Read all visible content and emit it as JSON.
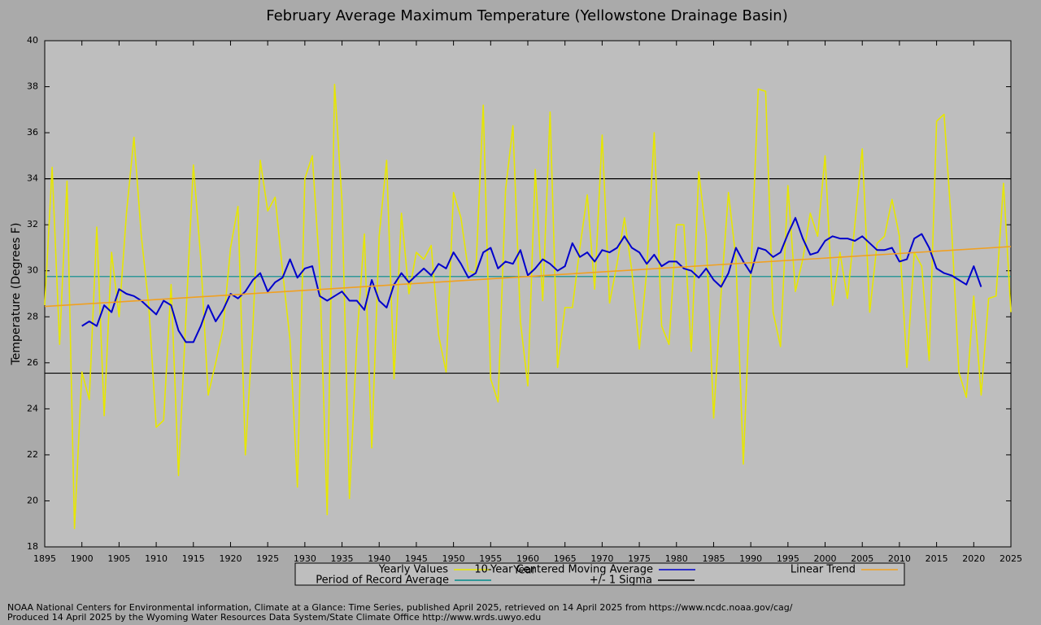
{
  "chart_data": {
    "type": "line",
    "title": "February Average Maximum Temperature (Yellowstone Drainage Basin)",
    "x_label": "Year",
    "y_label": "Temperature (Degrees F)",
    "xlim": [
      1895,
      2025
    ],
    "ylim": [
      18,
      40
    ],
    "xticks": [
      1895,
      1900,
      1905,
      1910,
      1915,
      1920,
      1925,
      1930,
      1935,
      1940,
      1945,
      1950,
      1955,
      1960,
      1965,
      1970,
      1975,
      1980,
      1985,
      1990,
      1995,
      2000,
      2005,
      2010,
      2015,
      2020,
      2025
    ],
    "yticks": [
      18,
      20,
      22,
      24,
      26,
      28,
      30,
      32,
      34,
      36,
      38,
      40
    ],
    "grid": false,
    "series": [
      {
        "name": "Yearly Values",
        "color": "#e6e600",
        "x": [
          1895,
          1896,
          1897,
          1898,
          1899,
          1900,
          1901,
          1902,
          1903,
          1904,
          1905,
          1906,
          1907,
          1908,
          1909,
          1910,
          1911,
          1912,
          1913,
          1914,
          1915,
          1916,
          1917,
          1918,
          1919,
          1920,
          1921,
          1922,
          1923,
          1924,
          1925,
          1926,
          1927,
          1928,
          1929,
          1930,
          1931,
          1932,
          1933,
          1934,
          1935,
          1936,
          1937,
          1938,
          1939,
          1940,
          1941,
          1942,
          1943,
          1944,
          1945,
          1946,
          1947,
          1948,
          1949,
          1950,
          1951,
          1952,
          1953,
          1954,
          1955,
          1956,
          1957,
          1958,
          1959,
          1960,
          1961,
          1962,
          1963,
          1964,
          1965,
          1966,
          1967,
          1968,
          1969,
          1970,
          1971,
          1972,
          1973,
          1974,
          1975,
          1976,
          1977,
          1978,
          1979,
          1980,
          1981,
          1982,
          1983,
          1984,
          1985,
          1986,
          1987,
          1988,
          1989,
          1990,
          1991,
          1992,
          1993,
          1994,
          1995,
          1996,
          1997,
          1998,
          1999,
          2000,
          2001,
          2002,
          2003,
          2004,
          2005,
          2006,
          2007,
          2008,
          2009,
          2010,
          2011,
          2012,
          2013,
          2014,
          2015,
          2016,
          2017,
          2018,
          2019,
          2020,
          2021,
          2022,
          2023,
          2024,
          2025
        ],
        "values": [
          28.5,
          34.5,
          26.8,
          33.9,
          18.8,
          25.6,
          24.4,
          31.9,
          23.7,
          30.8,
          28.0,
          32.5,
          35.8,
          31.5,
          28.5,
          23.2,
          23.5,
          29.4,
          21.1,
          28.0,
          34.6,
          30.5,
          24.6,
          26.0,
          27.5,
          31.0,
          32.8,
          22.0,
          27.5,
          34.8,
          32.6,
          33.2,
          30.0,
          27.0,
          20.6,
          34.0,
          35.0,
          30.0,
          19.4,
          38.1,
          33.0,
          20.1,
          27.0,
          31.6,
          22.3,
          31.5,
          34.8,
          25.3,
          32.5,
          29.0,
          30.8,
          30.5,
          31.1,
          27.2,
          25.6,
          33.4,
          32.3,
          30.0,
          29.9,
          37.2,
          25.3,
          24.3,
          33.5,
          36.3,
          27.8,
          25.0,
          34.4,
          28.7,
          36.9,
          25.8,
          28.4,
          28.4,
          31.0,
          33.3,
          29.2,
          35.9,
          28.6,
          30.3,
          32.3,
          30.0,
          26.6,
          30.0,
          36.0,
          27.6,
          26.8,
          32.0,
          32.0,
          26.5,
          34.3,
          31.5,
          23.6,
          29.0,
          33.4,
          30.5,
          21.6,
          29.8,
          37.9,
          37.8,
          28.2,
          26.7,
          33.7,
          29.1,
          30.5,
          32.5,
          31.5,
          35.0,
          28.5,
          30.8,
          28.8,
          32.0,
          35.3,
          28.2,
          31.2,
          31.5,
          33.1,
          31.5,
          25.8,
          30.8,
          30.2,
          26.1,
          36.5,
          36.8,
          32.0,
          25.6,
          24.5,
          28.9,
          24.6,
          28.8,
          28.9,
          33.8,
          28.2
        ]
      },
      {
        "name": "10-Year Centered Moving Average",
        "color": "#0000cc",
        "x": [
          1900,
          1901,
          1902,
          1903,
          1904,
          1905,
          1906,
          1907,
          1908,
          1909,
          1910,
          1911,
          1912,
          1913,
          1914,
          1915,
          1916,
          1917,
          1918,
          1919,
          1920,
          1921,
          1922,
          1923,
          1924,
          1925,
          1926,
          1927,
          1928,
          1929,
          1930,
          1931,
          1932,
          1933,
          1934,
          1935,
          1936,
          1937,
          1938,
          1939,
          1940,
          1941,
          1942,
          1943,
          1944,
          1945,
          1946,
          1947,
          1948,
          1949,
          1950,
          1951,
          1952,
          1953,
          1954,
          1955,
          1956,
          1957,
          1958,
          1959,
          1960,
          1961,
          1962,
          1963,
          1964,
          1965,
          1966,
          1967,
          1968,
          1969,
          1970,
          1971,
          1972,
          1973,
          1974,
          1975,
          1976,
          1977,
          1978,
          1979,
          1980,
          1981,
          1982,
          1983,
          1984,
          1985,
          1986,
          1987,
          1988,
          1989,
          1990,
          1991,
          1992,
          1993,
          1994,
          1995,
          1996,
          1997,
          1998,
          1999,
          2000,
          2001,
          2002,
          2003,
          2004,
          2005,
          2006,
          2007,
          2008,
          2009,
          2010,
          2011,
          2012,
          2013,
          2014,
          2015,
          2016,
          2017,
          2018,
          2019,
          2020,
          2021
        ],
        "values": [
          27.6,
          27.8,
          27.6,
          28.5,
          28.2,
          29.2,
          29.0,
          28.9,
          28.7,
          28.4,
          28.1,
          28.7,
          28.5,
          27.4,
          26.9,
          26.9,
          27.6,
          28.5,
          27.8,
          28.3,
          29.0,
          28.8,
          29.1,
          29.6,
          29.9,
          29.1,
          29.5,
          29.7,
          30.5,
          29.7,
          30.1,
          30.2,
          28.9,
          28.7,
          28.9,
          29.1,
          28.7,
          28.7,
          28.3,
          29.6,
          28.7,
          28.4,
          29.4,
          29.9,
          29.5,
          29.8,
          30.1,
          29.8,
          30.3,
          30.1,
          30.8,
          30.3,
          29.7,
          29.9,
          30.8,
          31.0,
          30.1,
          30.4,
          30.3,
          30.9,
          29.8,
          30.1,
          30.5,
          30.3,
          30.0,
          30.2,
          31.2,
          30.6,
          30.8,
          30.4,
          30.9,
          30.8,
          31.0,
          31.5,
          31.0,
          30.8,
          30.3,
          30.7,
          30.2,
          30.4,
          30.4,
          30.1,
          30.0,
          29.7,
          30.1,
          29.6,
          29.3,
          29.9,
          31.0,
          30.4,
          29.9,
          31.0,
          30.9,
          30.6,
          30.8,
          31.6,
          32.3,
          31.4,
          30.7,
          30.8,
          31.3,
          31.5,
          31.4,
          31.4,
          31.3,
          31.5,
          31.2,
          30.9,
          30.9,
          31.0,
          30.4,
          30.5,
          31.4,
          31.6,
          31.0,
          30.1,
          29.9,
          29.8,
          29.6,
          29.4,
          30.2,
          29.3
        ]
      },
      {
        "name": "Linear Trend",
        "color": "#f0a020",
        "x": [
          1895,
          2025
        ],
        "values": [
          28.45,
          31.05
        ]
      }
    ],
    "hlines": [
      {
        "name": "Period of Record Average",
        "color": "#008b8b",
        "values": [
          29.75
        ]
      },
      {
        "name": "+/- 1 Sigma",
        "color": "#000000",
        "values": [
          34.0,
          25.55
        ]
      }
    ],
    "footnotes": [
      "NOAA National Centers for Environmental information, Climate at a Glance: Time Series, published April 2025, retrieved on 14 April 2025 from https://www.ncdc.noaa.gov/cag/",
      "Produced 14 April 2025 by the Wyoming Water Resources Data System/State Climate Office http://www.wrds.uwyo.edu"
    ]
  }
}
